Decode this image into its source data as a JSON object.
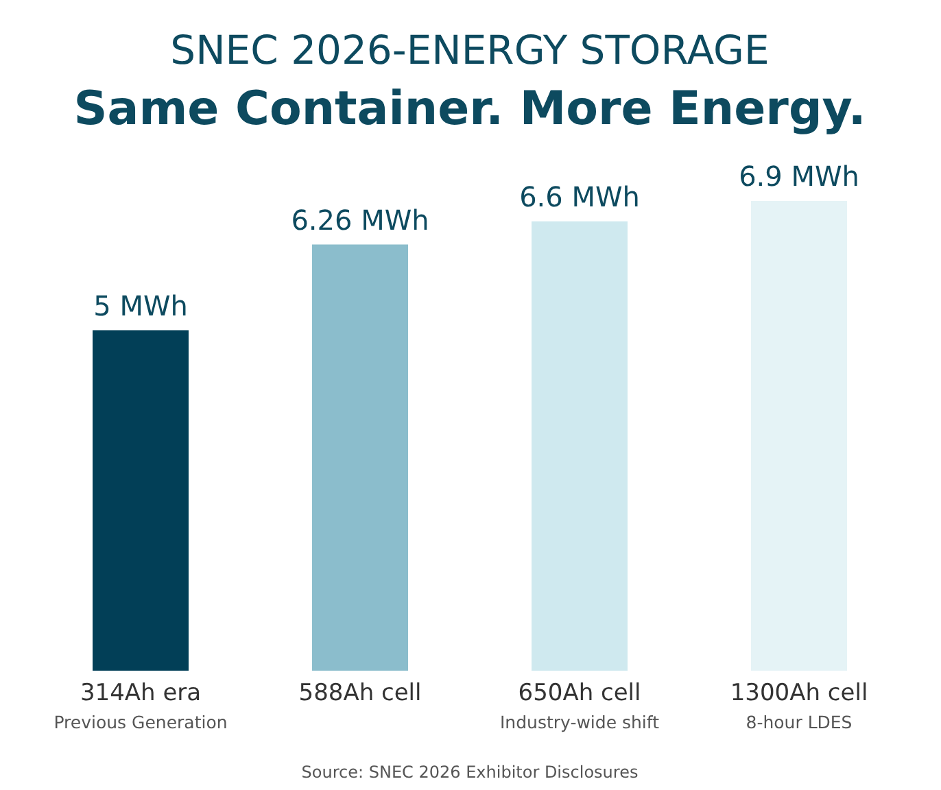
{
  "chart_data": {
    "type": "bar",
    "title": "SNEC 2026-ENERGY STORAGE",
    "subtitle": "Same Container. More Energy.",
    "categories": [
      "314Ah era\nPrevious Generation",
      "588Ah cell",
      "650Ah cell\nIndustry-wide shift",
      "1300Ah cell\n8-hour LDES"
    ],
    "values": [
      5,
      6.26,
      6.6,
      6.9
    ],
    "colors": [
      "#023f57",
      "#8bbdcc",
      "#cfe9ef",
      "#e5f3f6"
    ],
    "value_labels": [
      "5 MWh",
      "6.26 MWh",
      "6.6 MWh",
      "6.9 MWh"
    ],
    "annotations": [
      "Source: SNEC 2026 Exhibitor Disclosures"
    ]
  }
}
